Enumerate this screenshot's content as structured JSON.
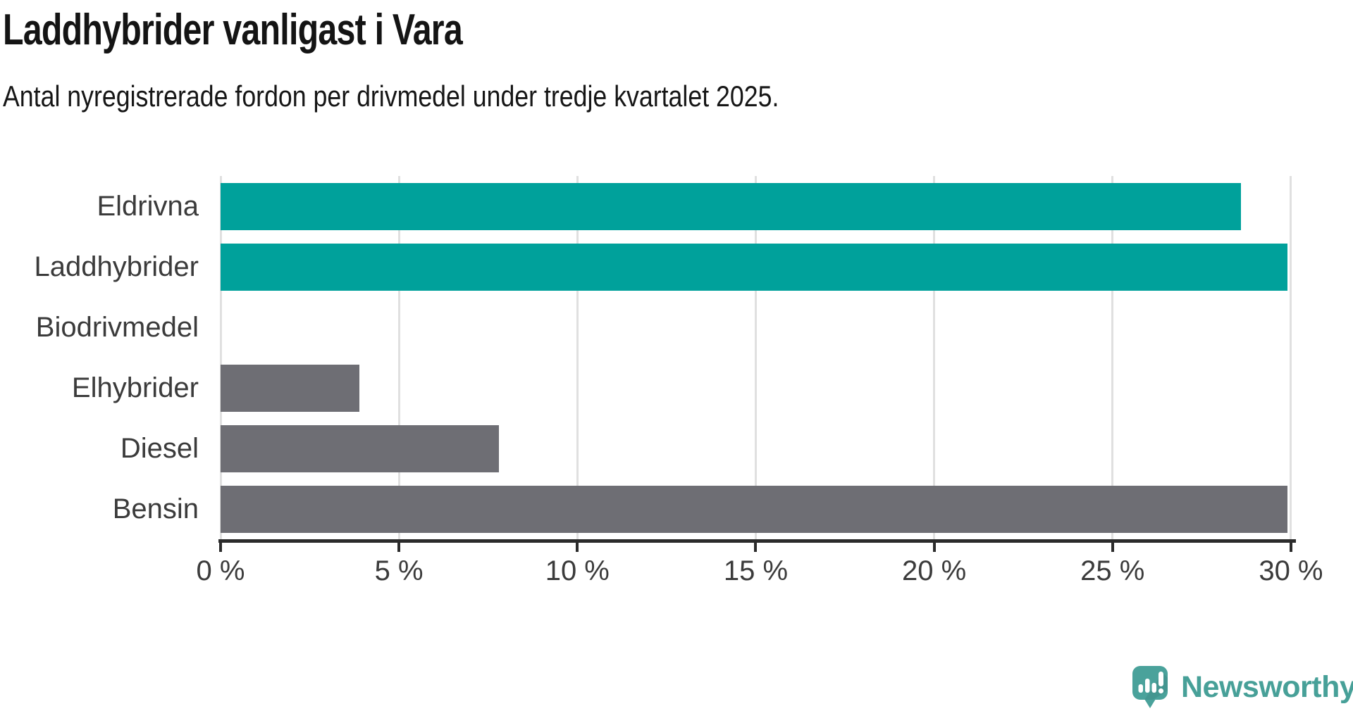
{
  "chart_data": {
    "type": "bar",
    "orientation": "horizontal",
    "title": "Laddhybrider vanligast i Vara",
    "subtitle": "Antal nyregistrerade fordon per drivmedel under tredje kvartalet 2025.",
    "categories": [
      "Eldrivna",
      "Laddhybrider",
      "Biodrivmedel",
      "Elhybrider",
      "Diesel",
      "Bensin"
    ],
    "values": [
      28.6,
      29.9,
      0,
      3.9,
      7.8,
      29.9
    ],
    "unit": "%",
    "bar_colors": [
      "#00a19b",
      "#00a19b",
      "#6e6e74",
      "#6e6e74",
      "#6e6e74",
      "#6e6e74"
    ],
    "x_ticks": [
      0,
      5,
      10,
      15,
      20,
      25,
      30
    ],
    "x_tick_labels": [
      "0 %",
      "5 %",
      "10 %",
      "15 %",
      "20 %",
      "25 %",
      "30 %"
    ],
    "xlim": [
      0,
      30.1
    ],
    "xlabel": "",
    "ylabel": "",
    "grid": true,
    "legend": false
  },
  "footer": {
    "brand": "Newsworthy"
  },
  "colors": {
    "electric_teal": "#00a19b",
    "fossil_gray": "#6e6e74",
    "brand_teal": "#47a098",
    "grid": "#e0e0e0",
    "axis": "#2b2b2b",
    "label_text": "#3b3b3b",
    "heading_text": "#141414"
  }
}
